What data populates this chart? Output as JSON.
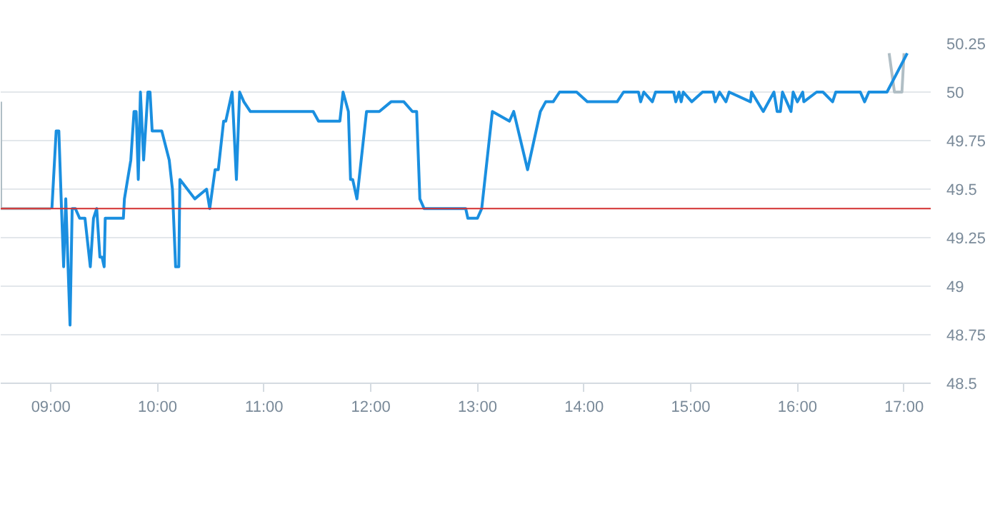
{
  "chart_data": {
    "type": "line",
    "xlim": [
      8.53,
      17.25
    ],
    "ylim": [
      48.5,
      50.25
    ],
    "xticks": [
      {
        "value": 9,
        "label": "09:00"
      },
      {
        "value": 10,
        "label": "10:00"
      },
      {
        "value": 11,
        "label": "11:00"
      },
      {
        "value": 12,
        "label": "12:00"
      },
      {
        "value": 13,
        "label": "13:00"
      },
      {
        "value": 14,
        "label": "14:00"
      },
      {
        "value": 15,
        "label": "15:00"
      },
      {
        "value": 16,
        "label": "16:00"
      },
      {
        "value": 17,
        "label": "17:00"
      }
    ],
    "yticks": [
      48.5,
      48.75,
      49,
      49.25,
      49.5,
      49.75,
      50,
      50.25
    ],
    "grid": "y",
    "ref_lines": [
      {
        "axis": "y",
        "value": 49.4,
        "label": null,
        "color": "#d32f2f"
      }
    ],
    "series": [
      {
        "color": "#b0bec5",
        "x": [
          8.53,
          8.53,
          9.0,
          16.84,
          16.86,
          16.91,
          16.98,
          17.0
        ],
        "values": [
          49.95,
          49.4,
          49.4,
          null,
          50.2,
          50.0,
          50.0,
          50.2
        ]
      },
      {
        "color": "#1a8fe0",
        "x": [
          9.01,
          9.05,
          9.075,
          9.1,
          9.12,
          9.14,
          9.18,
          9.2,
          9.23,
          9.27,
          9.32,
          9.37,
          9.4,
          9.43,
          9.46,
          9.48,
          9.5,
          9.51,
          9.68,
          9.69,
          9.75,
          9.78,
          9.8,
          9.82,
          9.84,
          9.87,
          9.91,
          9.93,
          9.95,
          10.04,
          10.11,
          10.14,
          10.17,
          10.2,
          10.21,
          10.35,
          10.46,
          10.49,
          10.54,
          10.57,
          10.62,
          10.64,
          10.7,
          10.74,
          10.77,
          10.81,
          10.87,
          11.46,
          11.51,
          11.71,
          11.74,
          11.79,
          11.81,
          11.83,
          11.87,
          11.96,
          12.08,
          12.19,
          12.31,
          12.39,
          12.43,
          12.46,
          12.5,
          12.89,
          12.91,
          13.0,
          13.04,
          13.14,
          13.3,
          13.34,
          13.47,
          13.59,
          13.64,
          13.71,
          13.77,
          13.93,
          14.03,
          14.31,
          14.37,
          14.51,
          14.53,
          14.56,
          14.64,
          14.67,
          14.84,
          14.86,
          14.89,
          14.91,
          14.93,
          15.01,
          15.11,
          15.21,
          15.23,
          15.27,
          15.33,
          15.36,
          15.56,
          15.57,
          15.68,
          15.78,
          15.81,
          15.84,
          15.86,
          15.9,
          15.94,
          15.96,
          16.0,
          16.05,
          16.06,
          16.18,
          16.24,
          16.33,
          16.36,
          16.59,
          16.63,
          16.67,
          16.84,
          17.03
        ],
        "values": [
          49.4,
          49.8,
          49.8,
          49.4,
          49.1,
          49.45,
          48.8,
          49.4,
          49.4,
          49.35,
          49.35,
          49.1,
          49.35,
          49.4,
          49.15,
          49.15,
          49.1,
          49.35,
          49.35,
          49.45,
          49.65,
          49.9,
          49.9,
          49.55,
          50.0,
          49.65,
          50.0,
          50.0,
          49.8,
          49.8,
          49.65,
          49.5,
          49.1,
          49.1,
          49.55,
          49.45,
          49.5,
          49.4,
          49.6,
          49.6,
          49.85,
          49.85,
          50.0,
          49.55,
          50.0,
          49.95,
          49.9,
          49.9,
          49.85,
          49.85,
          50.0,
          49.9,
          49.55,
          49.55,
          49.45,
          49.9,
          49.9,
          49.95,
          49.95,
          49.9,
          49.9,
          49.45,
          49.4,
          49.4,
          49.35,
          49.35,
          49.4,
          49.9,
          49.85,
          49.9,
          49.6,
          49.9,
          49.95,
          49.95,
          50.0,
          50.0,
          49.95,
          49.95,
          50.0,
          50.0,
          49.95,
          50.0,
          49.95,
          50.0,
          50.0,
          49.95,
          50.0,
          49.95,
          50.0,
          49.95,
          50.0,
          50.0,
          49.95,
          50.0,
          49.95,
          50.0,
          49.95,
          50.0,
          49.9,
          50.0,
          49.9,
          49.9,
          50.0,
          49.95,
          49.9,
          50.0,
          49.95,
          50.0,
          49.95,
          50.0,
          50.0,
          49.95,
          50.0,
          50.0,
          49.95,
          50.0,
          50.0,
          50.2
        ]
      }
    ]
  }
}
